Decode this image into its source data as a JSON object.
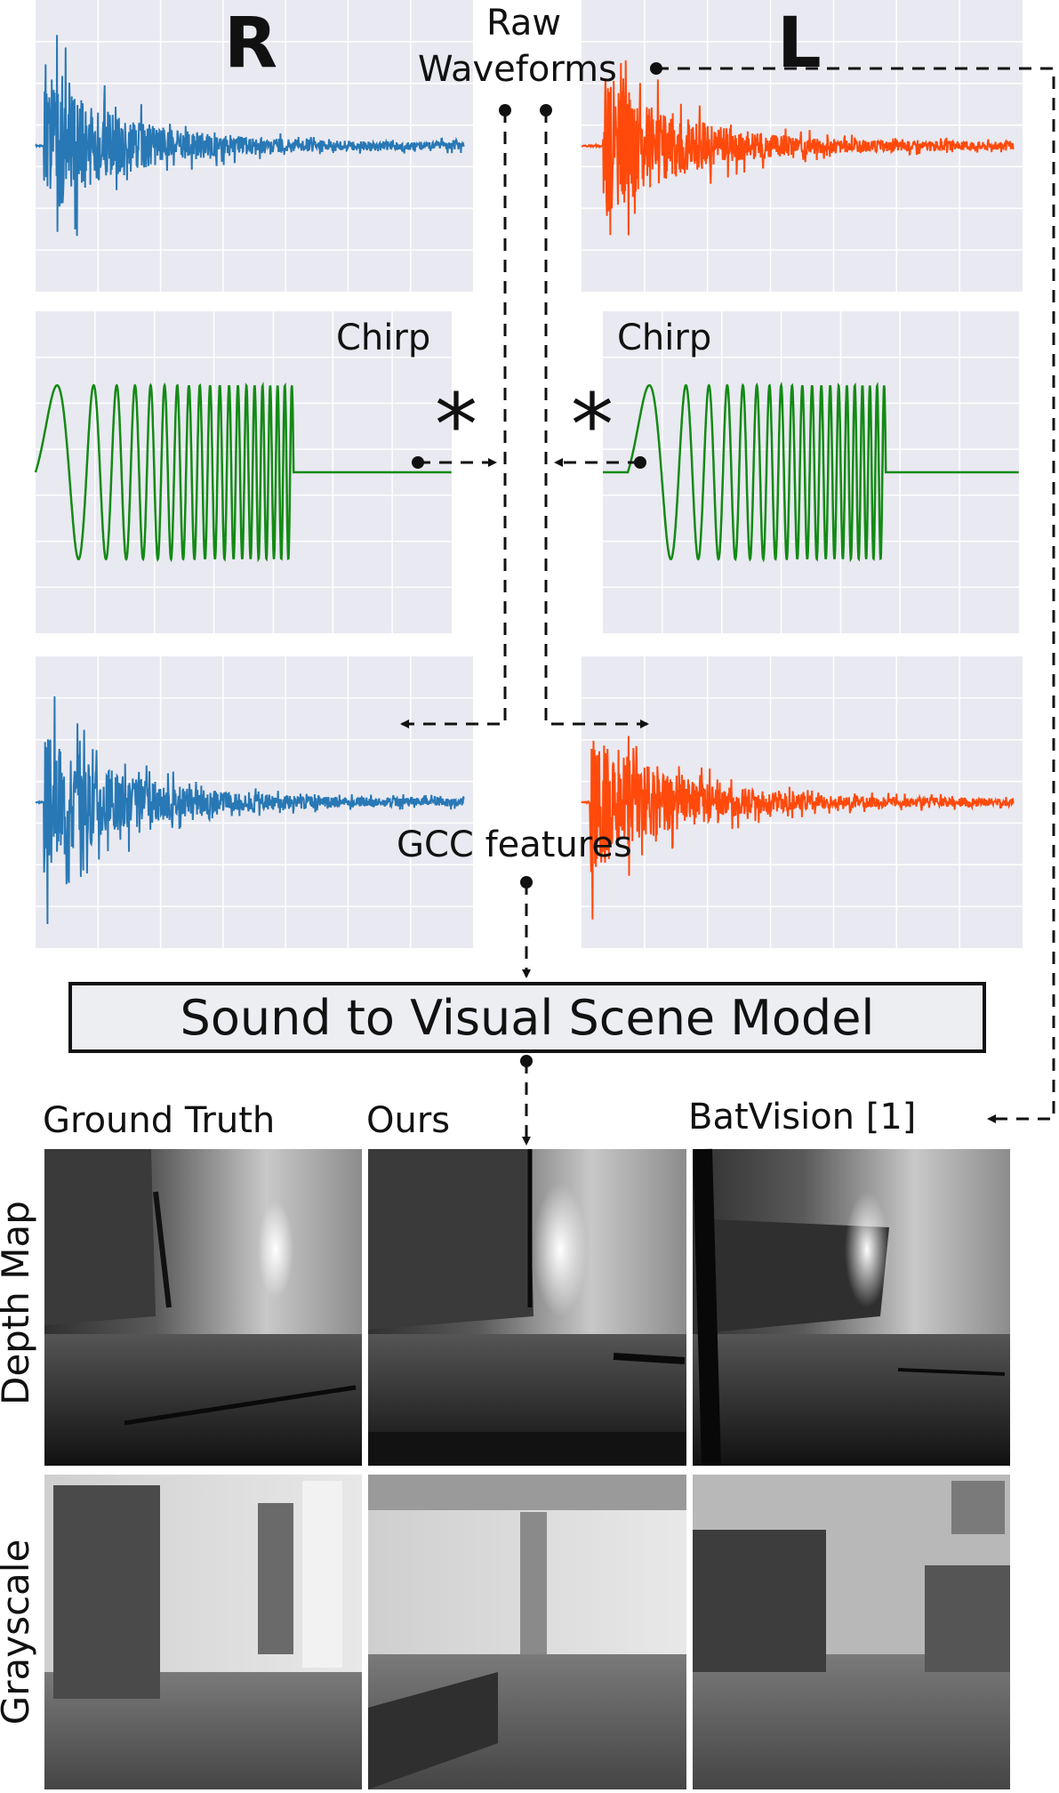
{
  "channels": {
    "right": "R",
    "left": "L"
  },
  "labels": {
    "raw_waveforms_line1": "Raw",
    "raw_waveforms_line2": "Waveforms",
    "chirp_right": "Chirp",
    "chirp_left": "Chirp",
    "convolution_symbol": "*",
    "gcc_features": "GCC features",
    "model": "Sound to Visual Scene Model"
  },
  "columns": [
    "Ground Truth",
    "Ours",
    "BatVision [1]"
  ],
  "rows": [
    "Depth Map",
    "Grayscale"
  ],
  "colors": {
    "right_waveform": "#2878b5",
    "left_waveform": "#ff4a0c",
    "chirp": "#138a14",
    "plot_background": "#e9e9f1",
    "grid": "#ffffff",
    "model_box_fill": "#edeef2"
  }
}
